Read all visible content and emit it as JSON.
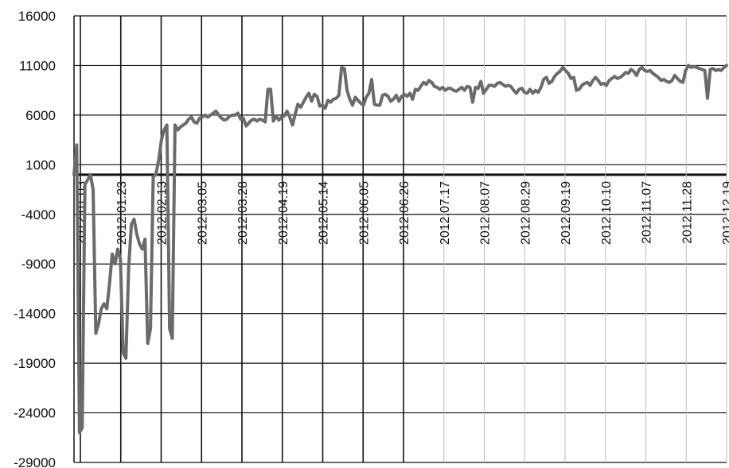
{
  "chart_data": {
    "type": "line",
    "title": "",
    "xlabel": "",
    "ylabel": "",
    "ylim": [
      -29000,
      16000
    ],
    "yticks": [
      16000,
      11000,
      6000,
      1000,
      -4000,
      -9000,
      -14000,
      -19000,
      -24000,
      -29000
    ],
    "grid": true,
    "line_color": "#6b6b6b",
    "x_tick_labels": [
      "2012.01.03",
      "2012.01.23",
      "2012.02.13",
      "2012.03.05",
      "2012.03.28",
      "2012.04.19",
      "2012.05.14",
      "2012.06.05",
      "2012.06.26",
      "2012.07.17",
      "2012.08.07",
      "2012.08.29",
      "2012.09.19",
      "2012.10.10",
      "2012.11.07",
      "2012.11.28",
      "2012.12.19"
    ],
    "series": [
      {
        "values": [
          0,
          3000,
          -26000,
          -25500,
          -1000,
          -500,
          0,
          -1500,
          -16000,
          -15000,
          -13500,
          -13000,
          -13500,
          -11000,
          -8000,
          -9000,
          -7500,
          -8500,
          -18000,
          -18500,
          -9500,
          -5000,
          -4500,
          -6000,
          -7000,
          -7500,
          -6500,
          -17000,
          -15500,
          -200,
          0,
          1500,
          3500,
          4500,
          5000,
          -15500,
          -16500,
          5000,
          4500,
          4800,
          5000,
          5200,
          5600,
          5800,
          5300,
          5200,
          5700,
          5800,
          6000,
          5800,
          6000,
          6200,
          6400,
          6000,
          5700,
          5500,
          5600,
          5900,
          6000,
          6000,
          6200,
          5600,
          5700,
          4900,
          5200,
          5500,
          5600,
          5400,
          5600,
          5500,
          5300,
          8600,
          8600,
          5400,
          5900,
          5500,
          5800,
          5900,
          6400,
          5800,
          5000,
          6100,
          7100,
          6800,
          7300,
          7800,
          8200,
          7400,
          8100,
          7900,
          6900,
          7000,
          6700,
          7500,
          7300,
          7600,
          7700,
          8000,
          10800,
          10700,
          8500,
          7600,
          7000,
          7800,
          7500,
          7200,
          7000,
          7800,
          8200,
          9600,
          7100,
          7000,
          7000,
          8000,
          8100,
          7900,
          7400,
          7600,
          8000,
          7400,
          7900,
          8100,
          7900,
          8200,
          7600,
          8600,
          8500,
          8900,
          9300,
          9100,
          9500,
          9300,
          8900,
          8800,
          8600,
          8800,
          8500,
          8700,
          8700,
          8500,
          8400,
          8600,
          8800,
          8500,
          8900,
          8800,
          7300,
          8800,
          8700,
          9400,
          8200,
          8600,
          9000,
          9000,
          8900,
          9200,
          9300,
          9100,
          8900,
          9000,
          8900,
          8500,
          8200,
          8600,
          8700,
          8300,
          8200,
          8600,
          8200,
          8500,
          8300,
          8800,
          9600,
          9800,
          9200,
          9400,
          9900,
          10200,
          10400,
          10800,
          10500,
          10200,
          9700,
          9800,
          8500,
          8600,
          9000,
          9200,
          9300,
          9000,
          9500,
          9800,
          9500,
          9100,
          9200,
          9000,
          9500,
          9700,
          9900,
          9700,
          9800,
          10000,
          10300,
          10200,
          10600,
          10400,
          10000,
          10600,
          10800,
          10500,
          10400,
          10500,
          10200,
          10000,
          9800,
          9500,
          9600,
          9400,
          9300,
          9500,
          10000,
          9700,
          9400,
          9300,
          10500,
          11000,
          10800,
          10900,
          10800,
          10700,
          10600,
          10500,
          7700,
          10600,
          10700,
          10500,
          10600,
          10500,
          10800,
          11000
        ]
      }
    ]
  }
}
